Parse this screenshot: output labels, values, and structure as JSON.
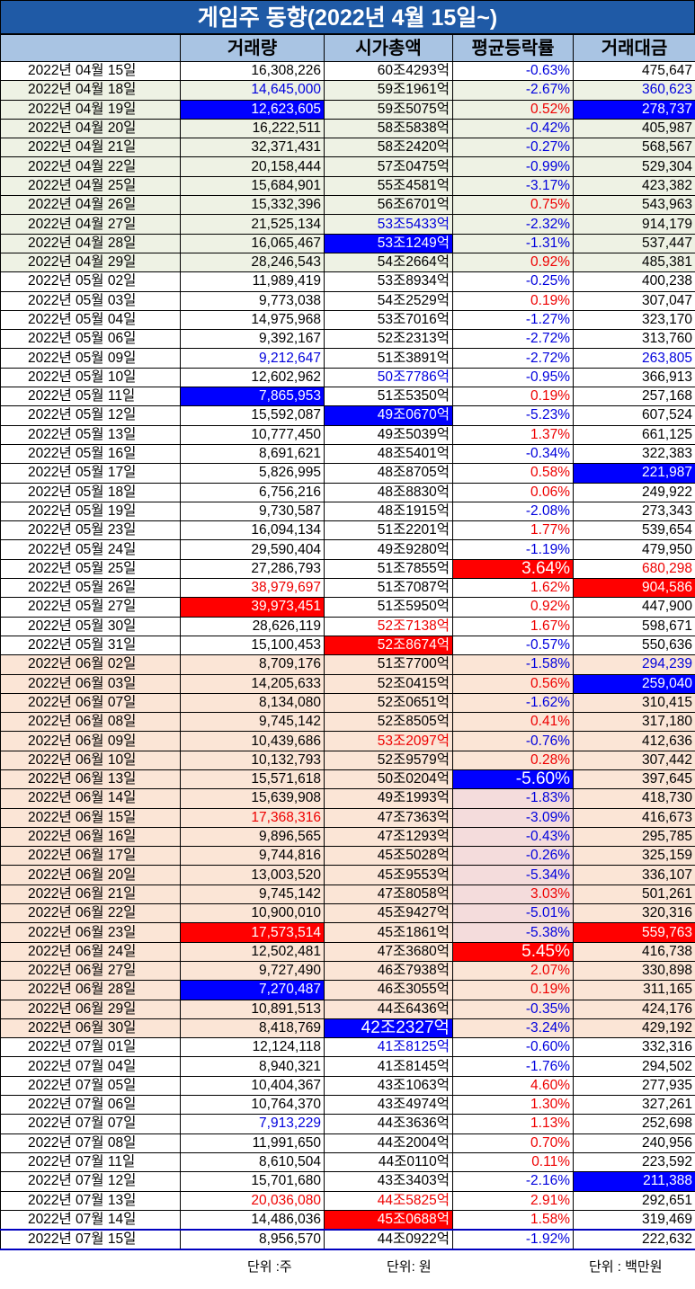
{
  "title": "게임주 동향(2022년 4월 15일~)",
  "headers": [
    "",
    "거래량",
    "시가총액",
    "평균등락률",
    "거래대금"
  ],
  "units": {
    "volume": "단위 :주",
    "cap": "단위: 원",
    "amount": "단위 : 백만원"
  },
  "rows": [
    {
      "d": "2022년 04월 15일",
      "v": "16,308,226",
      "c": "60조4293억",
      "r": "-0.63%",
      "a": "475,647",
      "bg": "w",
      "r_style": "blue"
    },
    {
      "d": "2022년 04월 18일",
      "v": "14,645,000",
      "c": "59조1961억",
      "r": "-2.67%",
      "a": "360,623",
      "bg": "g",
      "v_style": "blue",
      "r_style": "blue",
      "a_style": "blue"
    },
    {
      "d": "2022년 04월 19일",
      "v": "12,623,605",
      "c": "59조5075억",
      "r": "0.52%",
      "a": "278,737",
      "bg": "g",
      "v_style": "bbg",
      "r_style": "red",
      "a_style": "bbg"
    },
    {
      "d": "2022년 04월 20일",
      "v": "16,222,511",
      "c": "58조5838억",
      "r": "-0.42%",
      "a": "405,987",
      "bg": "g",
      "r_style": "blue"
    },
    {
      "d": "2022년 04월 21일",
      "v": "32,371,431",
      "c": "58조2420억",
      "r": "-0.27%",
      "a": "568,567",
      "bg": "g",
      "r_style": "blue"
    },
    {
      "d": "2022년 04월 22일",
      "v": "20,158,444",
      "c": "57조0475억",
      "r": "-0.99%",
      "a": "529,304",
      "bg": "g",
      "r_style": "blue"
    },
    {
      "d": "2022년 04월 25일",
      "v": "15,684,901",
      "c": "55조4581억",
      "r": "-3.17%",
      "a": "423,382",
      "bg": "g",
      "r_style": "blue"
    },
    {
      "d": "2022년 04월 26일",
      "v": "15,332,396",
      "c": "56조6701억",
      "r": "0.75%",
      "a": "543,963",
      "bg": "g",
      "r_style": "red"
    },
    {
      "d": "2022년 04월 27일",
      "v": "21,525,134",
      "c": "53조5433억",
      "r": "-2.32%",
      "a": "914,179",
      "bg": "g",
      "c_style": "blue",
      "r_style": "blue"
    },
    {
      "d": "2022년 04월 28일",
      "v": "16,065,467",
      "c": "53조1249억",
      "r": "-1.31%",
      "a": "537,447",
      "bg": "g",
      "c_style": "bbg",
      "r_style": "blue"
    },
    {
      "d": "2022년 04월 29일",
      "v": "28,246,543",
      "c": "54조2664억",
      "r": "0.92%",
      "a": "485,381",
      "bg": "g",
      "r_style": "red"
    },
    {
      "d": "2022년 05월 02일",
      "v": "11,989,419",
      "c": "53조8934억",
      "r": "-0.25%",
      "a": "400,238",
      "bg": "w",
      "r_style": "blue"
    },
    {
      "d": "2022년 05월 03일",
      "v": "9,773,038",
      "c": "54조2529억",
      "r": "0.19%",
      "a": "307,047",
      "bg": "w",
      "r_style": "red"
    },
    {
      "d": "2022년 05월 04일",
      "v": "14,975,968",
      "c": "53조7016억",
      "r": "-1.27%",
      "a": "323,170",
      "bg": "w",
      "r_style": "blue"
    },
    {
      "d": "2022년 05월 06일",
      "v": "9,392,167",
      "c": "52조2313억",
      "r": "-2.72%",
      "a": "313,760",
      "bg": "w",
      "r_style": "blue"
    },
    {
      "d": "2022년 05월 09일",
      "v": "9,212,647",
      "c": "51조3891억",
      "r": "-2.72%",
      "a": "263,805",
      "bg": "w",
      "v_style": "blue",
      "r_style": "blue",
      "a_style": "blue"
    },
    {
      "d": "2022년 05월 10일",
      "v": "12,602,962",
      "c": "50조7786억",
      "r": "-0.95%",
      "a": "366,913",
      "bg": "w",
      "c_style": "blue",
      "r_style": "blue"
    },
    {
      "d": "2022년 05월 11일",
      "v": "7,865,953",
      "c": "51조5350억",
      "r": "0.19%",
      "a": "257,168",
      "bg": "w",
      "v_style": "bbg",
      "r_style": "red"
    },
    {
      "d": "2022년 05월 12일",
      "v": "15,592,087",
      "c": "49조0670억",
      "r": "-5.23%",
      "a": "607,524",
      "bg": "w",
      "c_style": "bbg",
      "r_style": "blue"
    },
    {
      "d": "2022년 05월 13일",
      "v": "10,777,450",
      "c": "49조5039억",
      "r": "1.37%",
      "a": "661,125",
      "bg": "w",
      "r_style": "red"
    },
    {
      "d": "2022년 05월 16일",
      "v": "8,691,621",
      "c": "48조5401억",
      "r": "-0.34%",
      "a": "322,383",
      "bg": "w",
      "r_style": "blue"
    },
    {
      "d": "2022년 05월 17일",
      "v": "5,826,995",
      "c": "48조8705억",
      "r": "0.58%",
      "a": "221,987",
      "bg": "w",
      "r_style": "red",
      "a_style": "bbg"
    },
    {
      "d": "2022년 05월 18일",
      "v": "6,756,216",
      "c": "48조8830억",
      "r": "0.06%",
      "a": "249,922",
      "bg": "w",
      "r_style": "red"
    },
    {
      "d": "2022년 05월 19일",
      "v": "9,730,587",
      "c": "48조1915억",
      "r": "-2.08%",
      "a": "273,343",
      "bg": "w",
      "r_style": "blue"
    },
    {
      "d": "2022년 05월 23일",
      "v": "16,094,134",
      "c": "51조2201억",
      "r": "1.77%",
      "a": "539,654",
      "bg": "w",
      "r_style": "red"
    },
    {
      "d": "2022년 05월 24일",
      "v": "29,590,404",
      "c": "49조9280억",
      "r": "-1.19%",
      "a": "479,950",
      "bg": "w",
      "r_style": "blue"
    },
    {
      "d": "2022년 05월 25일",
      "v": "27,286,793",
      "c": "51조7855억",
      "r": "3.64%",
      "a": "680,298",
      "bg": "w",
      "r_style": "rbg big",
      "a_style": "red"
    },
    {
      "d": "2022년 05월 26일",
      "v": "38,979,697",
      "c": "51조7087억",
      "r": "1.62%",
      "a": "904,586",
      "bg": "w",
      "v_style": "red",
      "r_style": "red",
      "a_style": "rbg"
    },
    {
      "d": "2022년 05월 27일",
      "v": "39,973,451",
      "c": "51조5950억",
      "r": "0.92%",
      "a": "447,900",
      "bg": "w",
      "v_style": "rbg",
      "r_style": "red"
    },
    {
      "d": "2022년 05월 30일",
      "v": "28,626,119",
      "c": "52조7138억",
      "r": "1.67%",
      "a": "598,671",
      "bg": "w",
      "c_style": "red",
      "r_style": "red"
    },
    {
      "d": "2022년 05월 31일",
      "v": "15,100,453",
      "c": "52조8674억",
      "r": "-0.57%",
      "a": "550,636",
      "bg": "w",
      "c_style": "rbg",
      "r_style": "blue"
    },
    {
      "d": "2022년 06월 02일",
      "v": "8,709,176",
      "c": "51조7700억",
      "r": "-1.58%",
      "a": "294,239",
      "bg": "p",
      "r_style": "blue",
      "a_style": "blue"
    },
    {
      "d": "2022년 06월 03일",
      "v": "14,205,633",
      "c": "52조0415억",
      "r": "0.56%",
      "a": "259,040",
      "bg": "p",
      "r_style": "red",
      "a_style": "bbg"
    },
    {
      "d": "2022년 06월 07일",
      "v": "8,134,080",
      "c": "52조0651억",
      "r": "-1.62%",
      "a": "310,415",
      "bg": "p",
      "r_style": "blue"
    },
    {
      "d": "2022년 06월 08일",
      "v": "9,745,142",
      "c": "52조8505억",
      "r": "0.41%",
      "a": "317,180",
      "bg": "p",
      "r_style": "red"
    },
    {
      "d": "2022년 06월 09일",
      "v": "10,439,686",
      "c": "53조2097억",
      "r": "-0.76%",
      "a": "412,636",
      "bg": "p",
      "c_style": "red",
      "r_style": "blue"
    },
    {
      "d": "2022년 06월 10일",
      "v": "10,132,793",
      "c": "52조9579억",
      "r": "0.28%",
      "a": "307,442",
      "bg": "p",
      "r_style": "red"
    },
    {
      "d": "2022년 06월 13일",
      "v": "15,571,618",
      "c": "50조0204억",
      "r": "-5.60%",
      "a": "397,645",
      "bg": "p",
      "r_style": "bbg big"
    },
    {
      "d": "2022년 06월 14일",
      "v": "15,639,908",
      "c": "49조1993억",
      "r": "-1.83%",
      "a": "418,730",
      "bg": "p",
      "r_style": "blue pink"
    },
    {
      "d": "2022년 06월 15일",
      "v": "17,368,316",
      "c": "47조7363억",
      "r": "-3.09%",
      "a": "416,673",
      "bg": "p",
      "v_style": "red",
      "r_style": "blue pink"
    },
    {
      "d": "2022년 06월 16일",
      "v": "9,896,565",
      "c": "47조1293억",
      "r": "-0.43%",
      "a": "295,785",
      "bg": "p",
      "r_style": "blue pink"
    },
    {
      "d": "2022년 06월 17일",
      "v": "9,744,816",
      "c": "45조5028억",
      "r": "-0.26%",
      "a": "325,159",
      "bg": "p",
      "r_style": "blue pink"
    },
    {
      "d": "2022년 06월 20일",
      "v": "13,003,520",
      "c": "45조9553억",
      "r": "-5.34%",
      "a": "336,107",
      "bg": "p",
      "r_style": "blue pink"
    },
    {
      "d": "2022년 06월 21일",
      "v": "9,745,142",
      "c": "47조8058억",
      "r": "3.03%",
      "a": "501,261",
      "bg": "p",
      "r_style": "red pink"
    },
    {
      "d": "2022년 06월 22일",
      "v": "10,900,010",
      "c": "45조9427억",
      "r": "-5.01%",
      "a": "320,316",
      "bg": "p",
      "r_style": "blue pink"
    },
    {
      "d": "2022년 06월 23일",
      "v": "17,573,514",
      "c": "45조1861억",
      "r": "-5.38%",
      "a": "559,763",
      "bg": "p",
      "v_style": "rbg",
      "r_style": "blue pink",
      "a_style": "rbg"
    },
    {
      "d": "2022년 06월 24일",
      "v": "12,502,481",
      "c": "47조3680억",
      "r": "5.45%",
      "a": "416,738",
      "bg": "p",
      "r_style": "rbg big"
    },
    {
      "d": "2022년 06월 27일",
      "v": "9,727,490",
      "c": "46조7938억",
      "r": "2.07%",
      "a": "330,898",
      "bg": "p",
      "r_style": "red"
    },
    {
      "d": "2022년 06월 28일",
      "v": "7,270,487",
      "c": "46조3055억",
      "r": "0.19%",
      "a": "311,165",
      "bg": "p",
      "v_style": "bbg",
      "r_style": "red"
    },
    {
      "d": "2022년 06월 29일",
      "v": "10,891,513",
      "c": "44조6436억",
      "r": "-0.35%",
      "a": "424,176",
      "bg": "p",
      "r_style": "blue"
    },
    {
      "d": "2022년 06월 30일",
      "v": "8,418,769",
      "c": "42조2327억",
      "r": "-3.24%",
      "a": "429,192",
      "bg": "p",
      "c_style": "bbg big",
      "r_style": "blue"
    },
    {
      "d": "2022년 07월 01일",
      "v": "12,124,118",
      "c": "41조8125억",
      "r": "-0.60%",
      "a": "332,316",
      "bg": "w",
      "c_style": "blue",
      "r_style": "blue"
    },
    {
      "d": "2022년 07월 04일",
      "v": "8,940,321",
      "c": "41조8145억",
      "r": "-1.76%",
      "a": "294,502",
      "bg": "w",
      "r_style": "blue"
    },
    {
      "d": "2022년 07월 05일",
      "v": "10,404,367",
      "c": "43조1063억",
      "r": "4.60%",
      "a": "277,935",
      "bg": "w",
      "r_style": "red"
    },
    {
      "d": "2022년 07월 06일",
      "v": "10,764,370",
      "c": "43조4974억",
      "r": "1.30%",
      "a": "327,261",
      "bg": "w",
      "r_style": "red"
    },
    {
      "d": "2022년 07월 07일",
      "v": "7,913,229",
      "c": "44조3636억",
      "r": "1.13%",
      "a": "252,698",
      "bg": "w",
      "v_style": "blue",
      "r_style": "red"
    },
    {
      "d": "2022년 07월 08일",
      "v": "11,991,650",
      "c": "44조2004억",
      "r": "0.70%",
      "a": "240,956",
      "bg": "w",
      "r_style": "red"
    },
    {
      "d": "2022년 07월 11일",
      "v": "8,610,504",
      "c": "44조0110억",
      "r": "0.11%",
      "a": "223,592",
      "bg": "w",
      "r_style": "red"
    },
    {
      "d": "2022년 07월 12일",
      "v": "15,701,680",
      "c": "43조3403억",
      "r": "-2.16%",
      "a": "211,388",
      "bg": "w",
      "r_style": "blue",
      "a_style": "bbg"
    },
    {
      "d": "2022년 07월 13일",
      "v": "20,036,080",
      "c": "44조5825억",
      "r": "2.91%",
      "a": "292,651",
      "bg": "w",
      "v_style": "red",
      "c_style": "red",
      "r_style": "red"
    },
    {
      "d": "2022년 07월 14일",
      "v": "14,486,036",
      "c": "45조0688억",
      "r": "1.58%",
      "a": "319,469",
      "bg": "w",
      "c_style": "rbg",
      "r_style": "red"
    },
    {
      "d": "2022년 07월 15일",
      "v": "8,956,570",
      "c": "44조0922억",
      "r": "-1.92%",
      "a": "222,632",
      "bg": "w",
      "r_style": "blue",
      "last": true
    }
  ]
}
